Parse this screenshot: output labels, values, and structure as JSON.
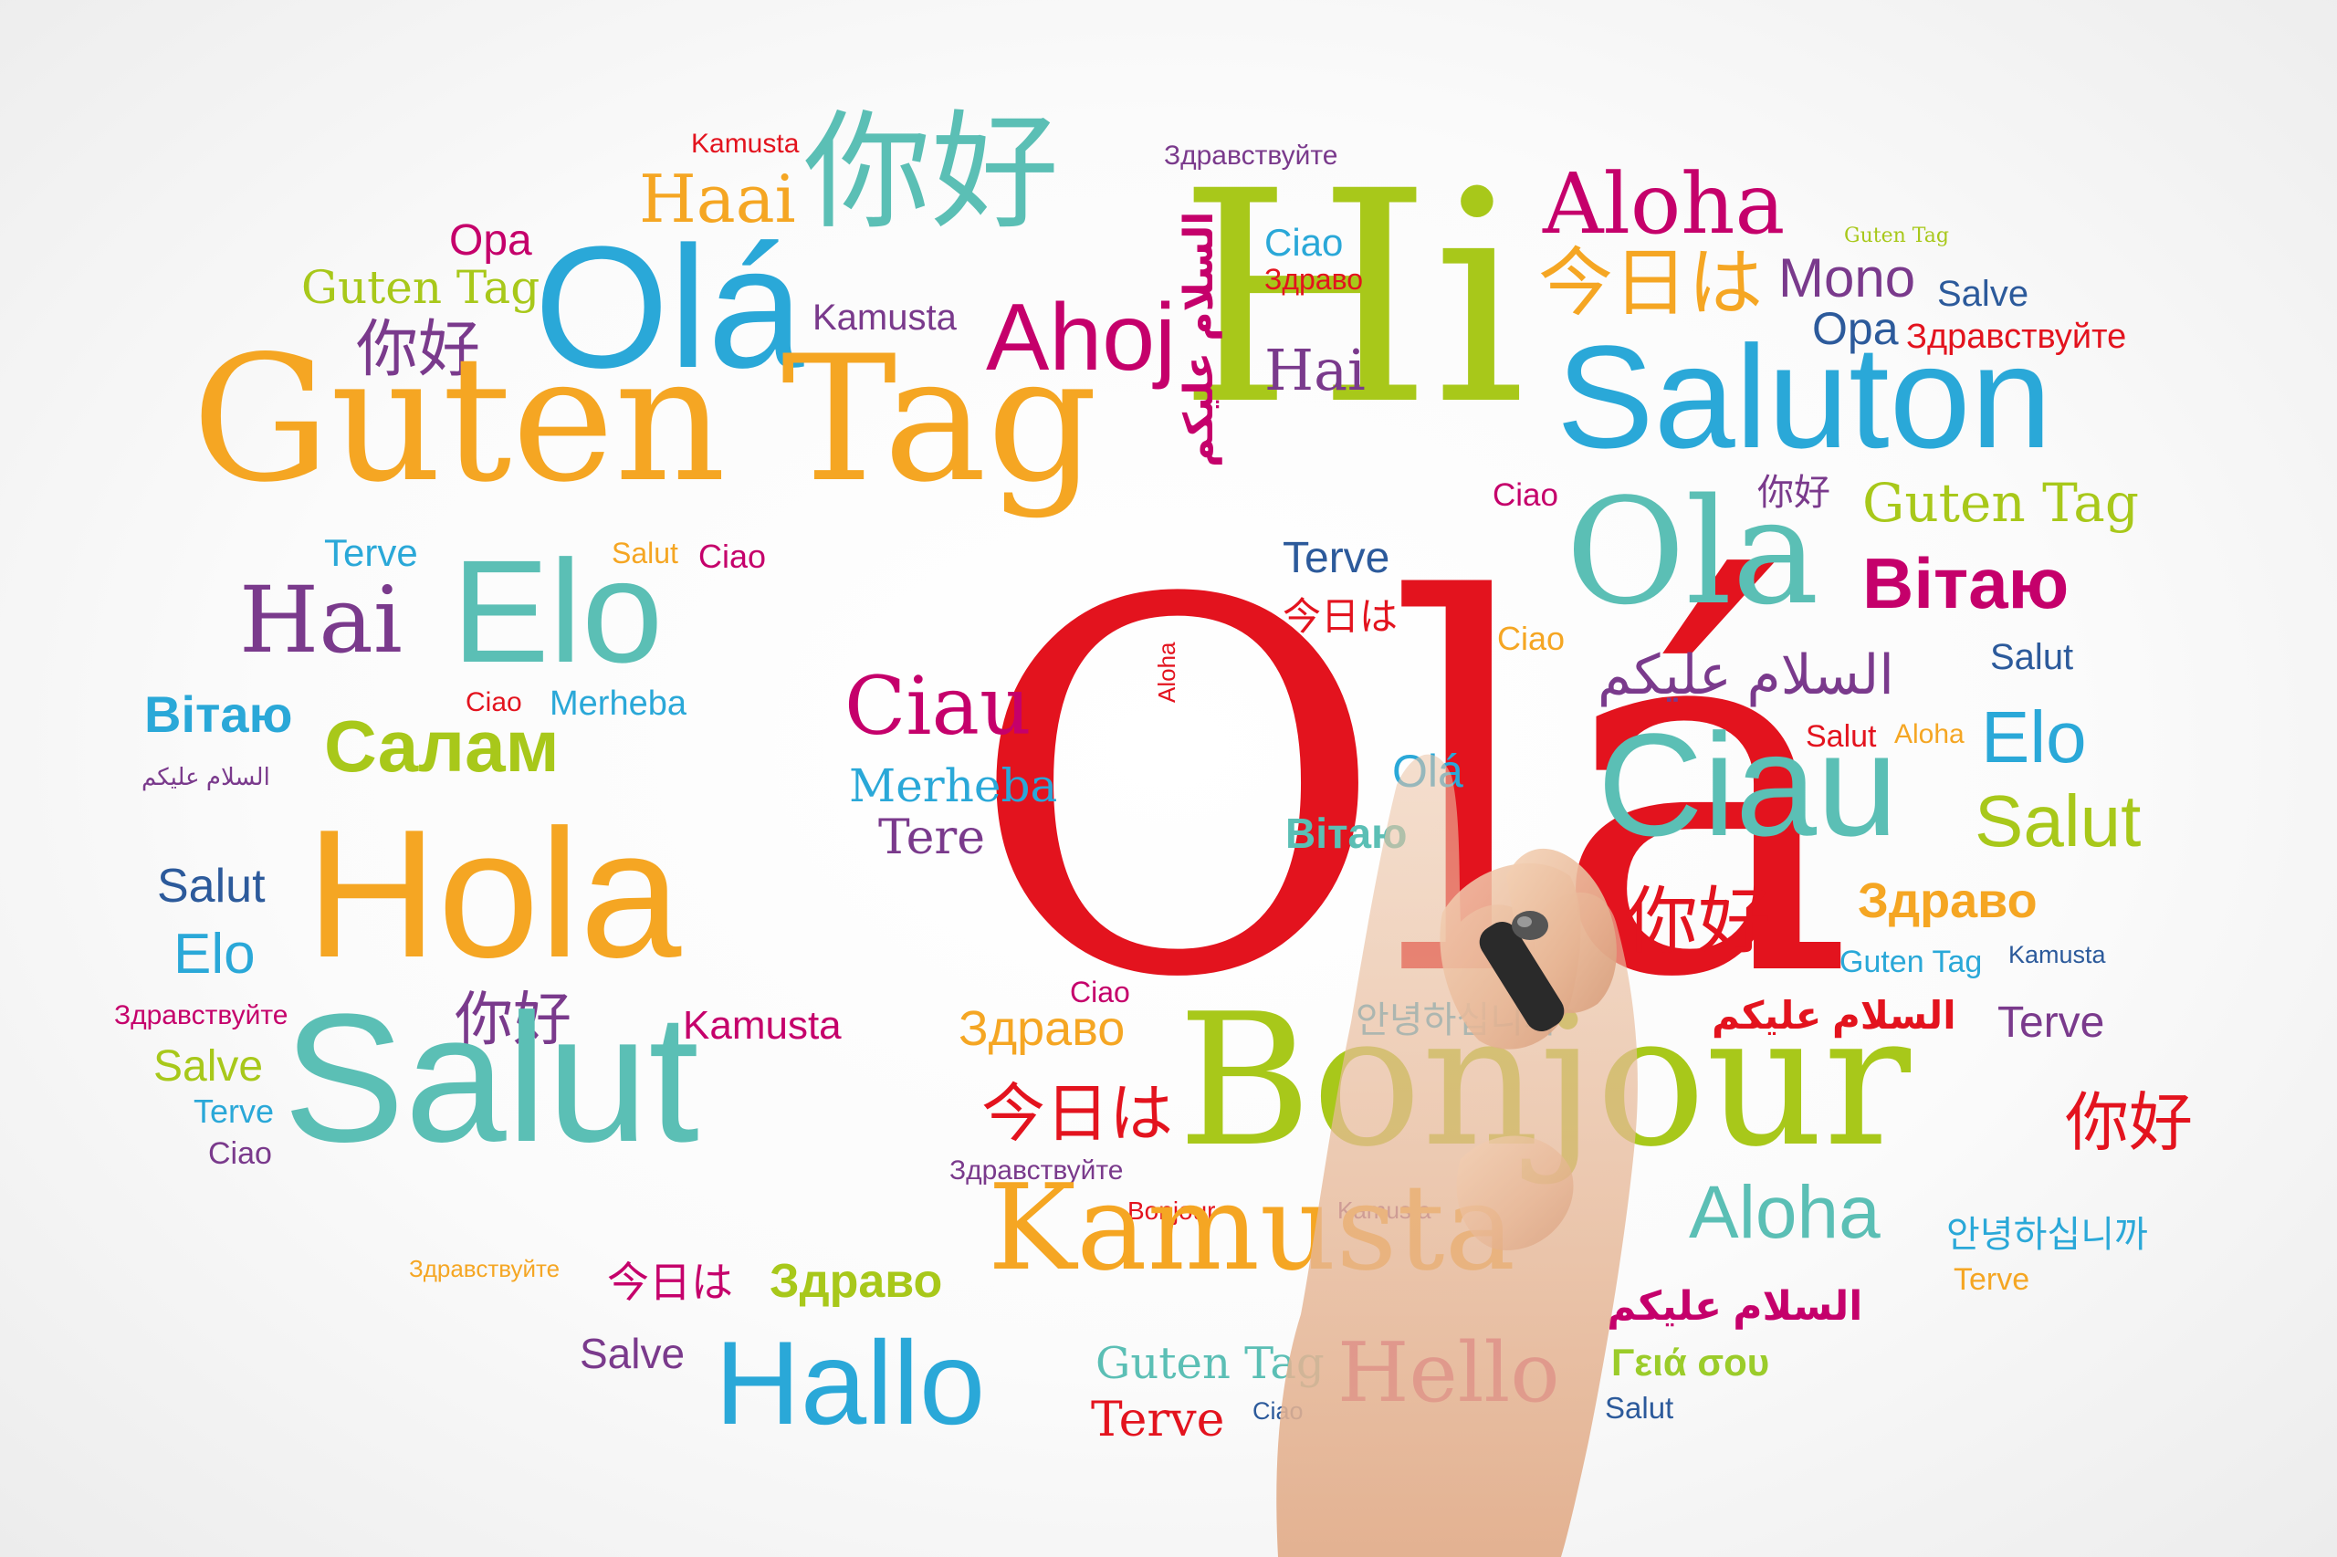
{
  "palette": {
    "red": "#e3131e",
    "magenta": "#c5006b",
    "pink": "#d81b60",
    "orange": "#f5a623",
    "lime": "#a8c81a",
    "teal": "#5bbfb5",
    "blue": "#2aa8d8",
    "purple": "#7a3a8c",
    "navy": "#2c5a9b",
    "green": "#6bb83a",
    "yellowgreen": "#9bcc2a"
  },
  "hand_icon": "hand-holding-marker-icon",
  "words": [
    {
      "text": "Olá",
      "color": "red"
    },
    {
      "text": "Ciau",
      "color": "magenta"
    },
    {
      "text": "Merheba",
      "color": "blue"
    },
    {
      "text": "Tere",
      "color": "purple"
    },
    {
      "text": "Kamusta",
      "color": "red"
    },
    {
      "text": "你好",
      "color": "teal"
    },
    {
      "text": "Здравствуйте",
      "color": "purple"
    },
    {
      "text": "Haai",
      "color": "orange"
    },
    {
      "text": "Hi",
      "color": "lime"
    },
    {
      "text": "Aloha",
      "color": "magenta"
    },
    {
      "text": "Guten Tag",
      "color": "lime"
    },
    {
      "text": "Opa",
      "color": "magenta"
    },
    {
      "text": "Guten Tag",
      "color": "lime"
    },
    {
      "text": "Olá",
      "color": "blue"
    },
    {
      "text": "Ciao",
      "color": "blue"
    },
    {
      "text": "Здраво",
      "color": "red"
    },
    {
      "text": "今日は",
      "color": "orange"
    },
    {
      "text": "Mono",
      "color": "purple"
    },
    {
      "text": "Salve",
      "color": "navy"
    },
    {
      "text": "Kamusta",
      "color": "purple"
    },
    {
      "text": "Ahoj",
      "color": "magenta"
    },
    {
      "text": "Opa",
      "color": "navy"
    },
    {
      "text": "Здравствуйте",
      "color": "red"
    },
    {
      "text": "你好",
      "color": "purple"
    },
    {
      "text": "Hai",
      "color": "purple"
    },
    {
      "text": "Saluton",
      "color": "blue"
    },
    {
      "text": "Guten Tag",
      "color": "orange"
    },
    {
      "text": "السلام عليكم",
      "color": "magenta"
    },
    {
      "text": "Ciao",
      "color": "magenta"
    },
    {
      "text": "你好",
      "color": "purple"
    },
    {
      "text": "Guten Tag",
      "color": "lime"
    },
    {
      "text": "Ola",
      "color": "teal"
    },
    {
      "text": "Terve",
      "color": "blue"
    },
    {
      "text": "Salut",
      "color": "orange"
    },
    {
      "text": "Ciao",
      "color": "magenta"
    },
    {
      "text": "Terve",
      "color": "navy"
    },
    {
      "text": "Вітаю",
      "color": "magenta"
    },
    {
      "text": "Hai",
      "color": "purple"
    },
    {
      "text": "Elo",
      "color": "teal"
    },
    {
      "text": "今日は",
      "color": "red"
    },
    {
      "text": "Aloha",
      "color": "red"
    },
    {
      "text": "Ciao",
      "color": "orange"
    },
    {
      "text": "السلام عليكم",
      "color": "purple"
    },
    {
      "text": "Salut",
      "color": "navy"
    },
    {
      "text": "Вітаю",
      "color": "blue"
    },
    {
      "text": "Ciao",
      "color": "red"
    },
    {
      "text": "Merheba",
      "color": "blue"
    },
    {
      "text": "Вітаю",
      "color": "teal"
    },
    {
      "text": "Olá",
      "color": "blue"
    },
    {
      "text": "Salut",
      "color": "red"
    },
    {
      "text": "Aloha",
      "color": "orange"
    },
    {
      "text": "Elo",
      "color": "blue"
    },
    {
      "text": "Салам",
      "color": "lime"
    },
    {
      "text": "السلام عليكم",
      "color": "purple"
    },
    {
      "text": "Ciau",
      "color": "teal"
    },
    {
      "text": "Salut",
      "color": "lime"
    },
    {
      "text": "Hola",
      "color": "orange"
    },
    {
      "text": "Salut",
      "color": "navy"
    },
    {
      "text": "Elo",
      "color": "blue"
    },
    {
      "text": "Здраво",
      "color": "orange"
    },
    {
      "text": "你好",
      "color": "red"
    },
    {
      "text": "Guten Tag",
      "color": "blue"
    },
    {
      "text": "Kamusta",
      "color": "navy"
    },
    {
      "text": "Здравствуйте",
      "color": "magenta"
    },
    {
      "text": "你好",
      "color": "purple"
    },
    {
      "text": "Kamusta",
      "color": "magenta"
    },
    {
      "text": "Ciao",
      "color": "magenta"
    },
    {
      "text": "Здраво",
      "color": "orange"
    },
    {
      "text": "안녕하십니까",
      "color": "blue"
    },
    {
      "text": "السلام عليكم",
      "color": "red"
    },
    {
      "text": "Terve",
      "color": "purple"
    },
    {
      "text": "Salve",
      "color": "lime"
    },
    {
      "text": "Terve",
      "color": "blue"
    },
    {
      "text": "Ciao",
      "color": "purple"
    },
    {
      "text": "Salut",
      "color": "teal"
    },
    {
      "text": "今日は",
      "color": "red"
    },
    {
      "text": "Bonjour",
      "color": "lime"
    },
    {
      "text": "你好",
      "color": "red"
    },
    {
      "text": "Здравствуйте",
      "color": "purple"
    },
    {
      "text": "Bonjour",
      "color": "red"
    },
    {
      "text": "Kamusta",
      "color": "purple"
    },
    {
      "text": "Aloha",
      "color": "teal"
    },
    {
      "text": "안녕하십니까",
      "color": "blue"
    },
    {
      "text": "Kamusta",
      "color": "orange"
    },
    {
      "text": "Здравствуйте",
      "color": "orange"
    },
    {
      "text": "今日は",
      "color": "magenta"
    },
    {
      "text": "Здраво",
      "color": "lime"
    },
    {
      "text": "Terve",
      "color": "orange"
    },
    {
      "text": "السلام عليكم",
      "color": "magenta"
    },
    {
      "text": "Salve",
      "color": "purple"
    },
    {
      "text": "Hallo",
      "color": "blue"
    },
    {
      "text": "Guten Tag",
      "color": "teal"
    },
    {
      "text": "Hello",
      "color": "magenta"
    },
    {
      "text": "Γειά σου",
      "color": "yellowgreen"
    },
    {
      "text": "Terve",
      "color": "red"
    },
    {
      "text": "Ciao",
      "color": "navy"
    },
    {
      "text": "Salut",
      "color": "navy"
    }
  ]
}
